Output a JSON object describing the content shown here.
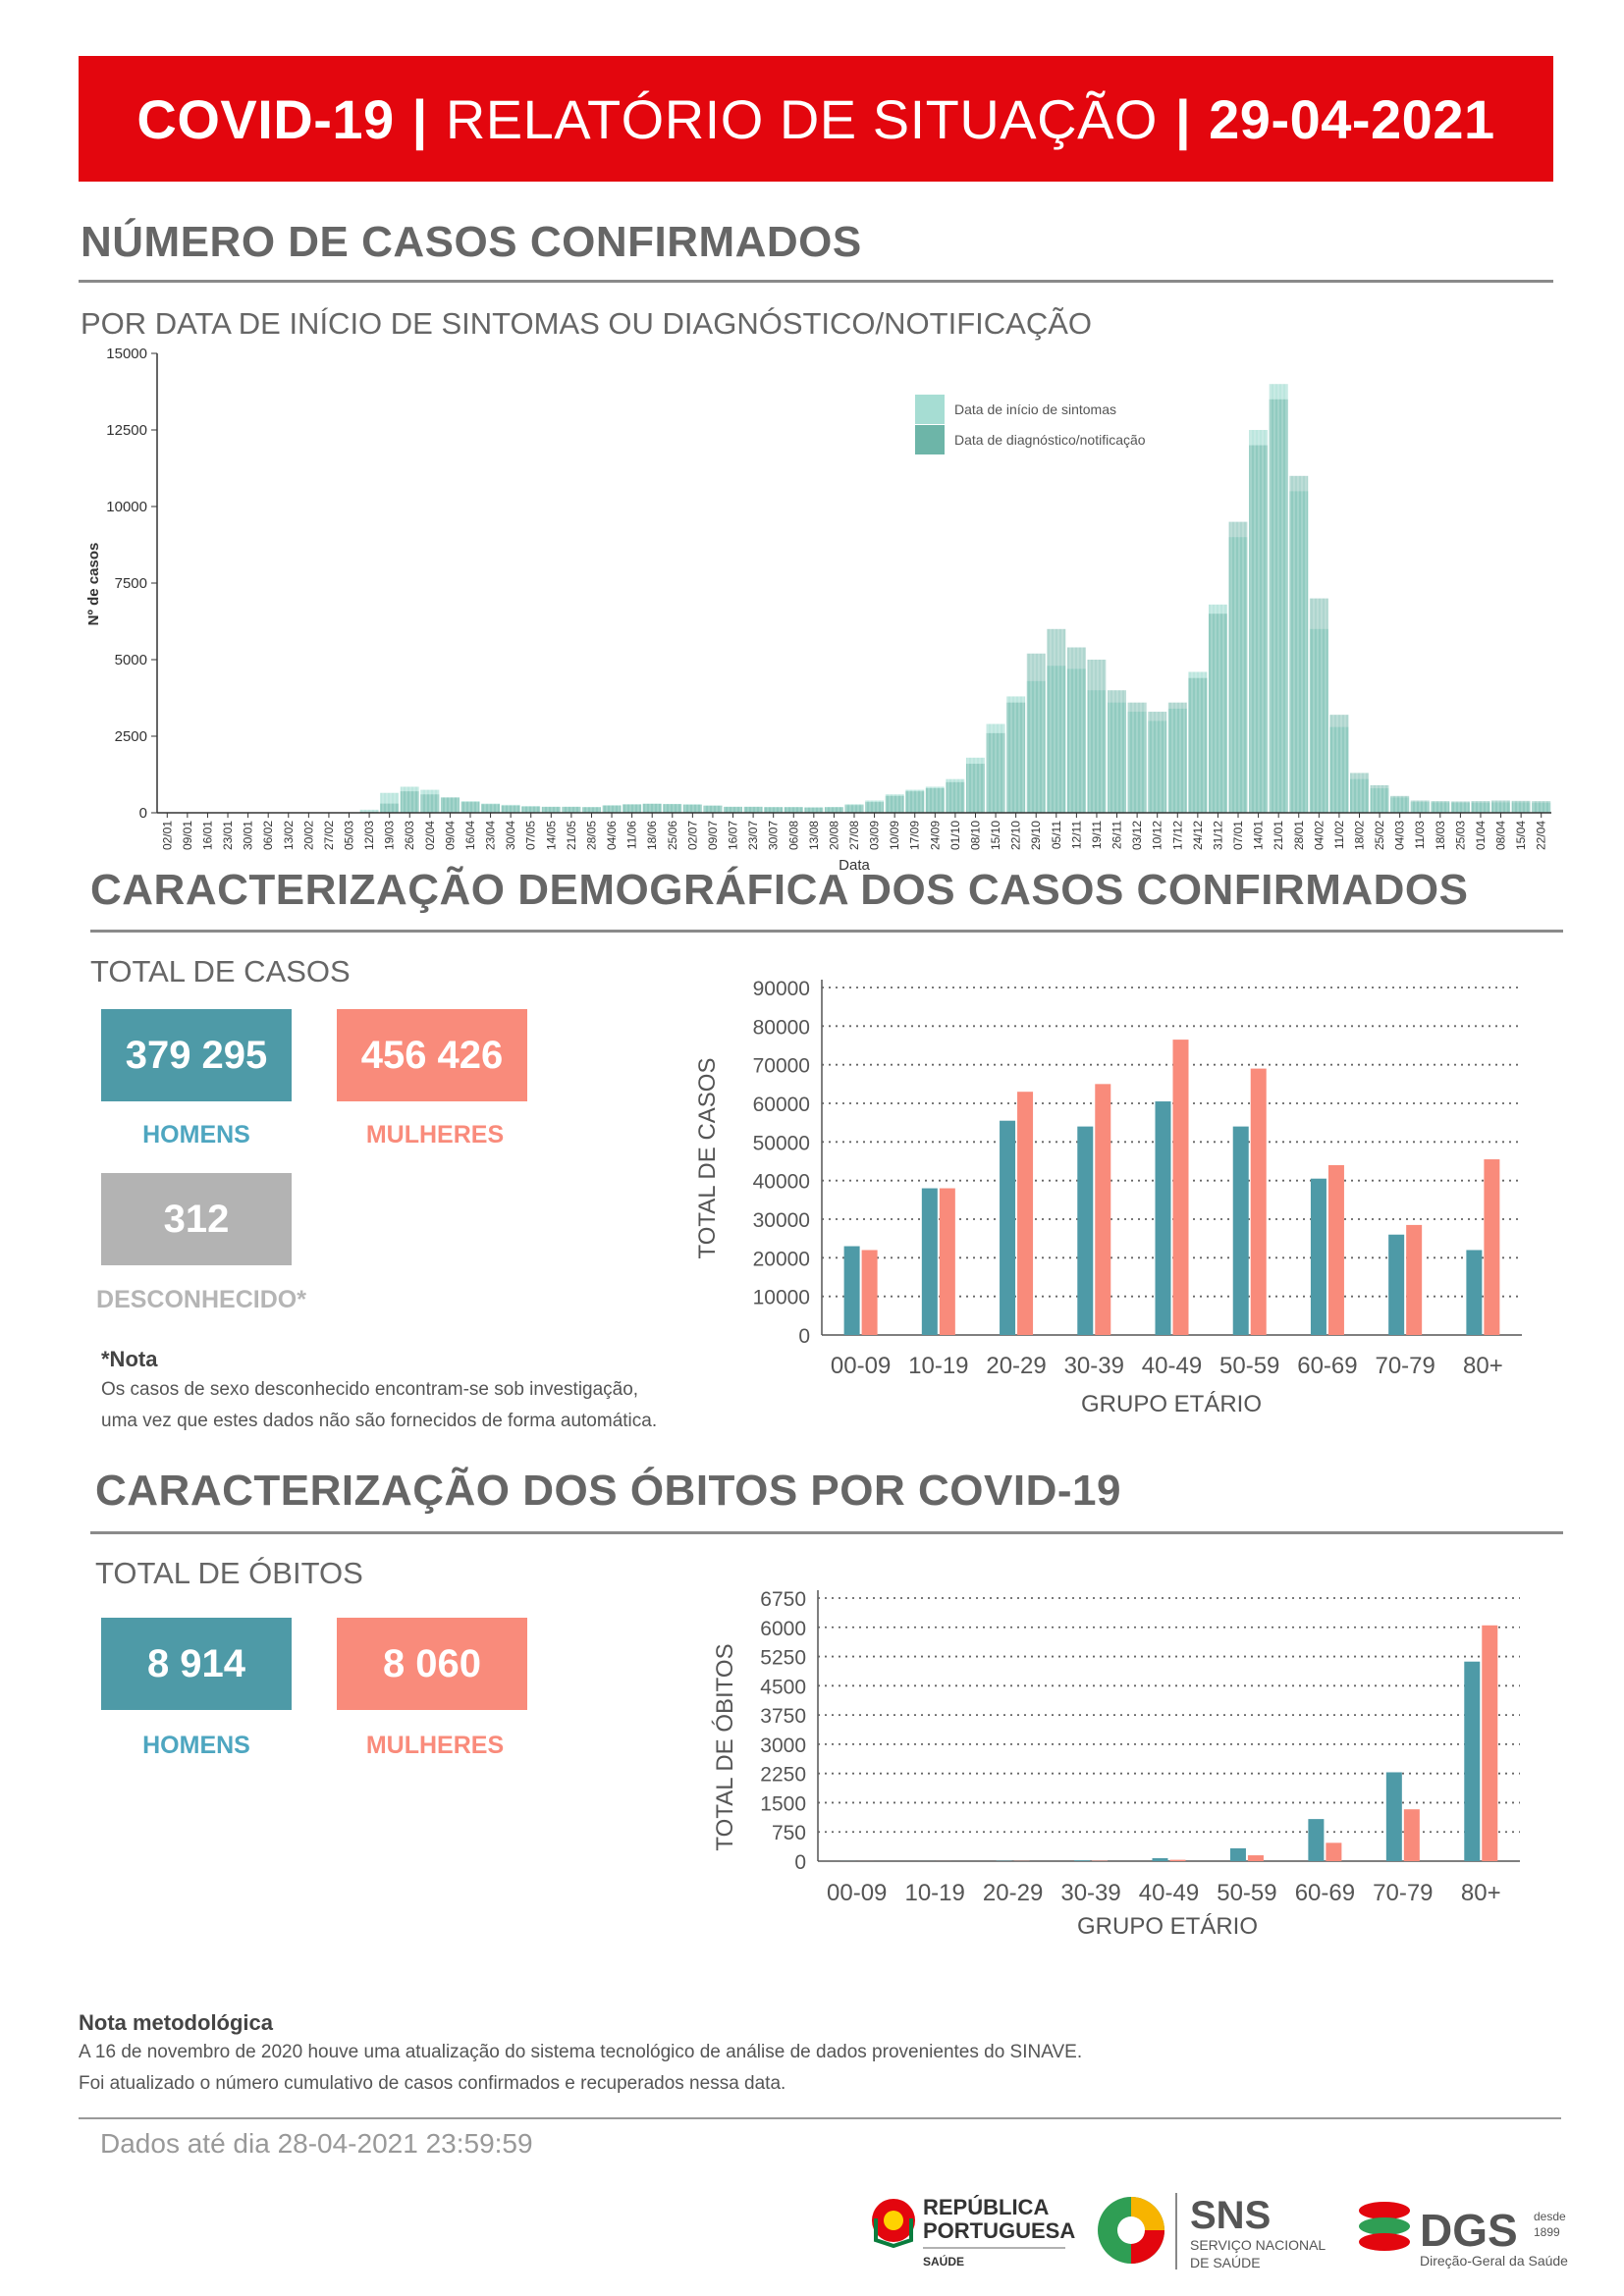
{
  "banner": {
    "left": "COVID-19",
    "sep": "|",
    "middle": "RELATÓRIO DE SITUAÇÃO",
    "date": "29-04-2021"
  },
  "sections": {
    "cases": {
      "title": "NÚMERO DE CASOS CONFIRMADOS",
      "subtitle": "POR DATA DE INÍCIO DE SINTOMAS OU DIAGNÓSTICO/NOTIFICAÇÃO"
    },
    "demo": {
      "title": "CARACTERIZAÇÃO DEMOGRÁFICA DOS CASOS CONFIRMADOS",
      "total_label": "TOTAL DE CASOS"
    },
    "deaths": {
      "title": "CARACTERIZAÇÃO DOS ÓBITOS POR COVID-19",
      "total_label": "TOTAL DE ÓBITOS"
    }
  },
  "totals_cases": {
    "men": "379 295",
    "men_label": "HOMENS",
    "women": "456 426",
    "women_label": "MULHERES",
    "unknown": "312",
    "unknown_label": "DESCONHECIDO*"
  },
  "note": {
    "title": "*Nota",
    "line1": "Os casos de sexo desconhecido encontram-se sob investigação,",
    "line2": "uma vez que estes dados não são fornecidos de forma automática."
  },
  "totals_deaths": {
    "men": "8 914",
    "men_label": "HOMENS",
    "women": "8 060",
    "women_label": "MULHERES"
  },
  "methodology": {
    "title": "Nota metodológica",
    "line1": "A 16 de novembro de 2020 houve uma atualização do sistema tecnológico de análise de dados provenientes do SINAVE.",
    "line2": "Foi atualizado o número cumulativo de casos confirmados e recuperados nessa data."
  },
  "footer": {
    "data_until": "Dados até dia 28-04-2021 23:59:59"
  },
  "logos": {
    "republica_line1": "REPÚBLICA",
    "republica_line2": "PORTUGUESA",
    "republica_line3": "SAÚDE",
    "sns": "SNS",
    "sns_line1": "SERVIÇO NACIONAL",
    "sns_line2": "DE SAÚDE",
    "dgs": "DGS",
    "dgs_since": "desde",
    "dgs_year": "1899",
    "dgs_name": "Direção-Geral da Saúde"
  },
  "colors": {
    "teal": "#4e9aa7",
    "salmon": "#f98b7b",
    "light_teal": "#a6ddd3",
    "dark_teal": "#6db5a8",
    "red": "#e3060e"
  },
  "chart_data": [
    {
      "type": "bar",
      "ylabel": "Nº de casos",
      "xlabel": "Data",
      "ylim": [
        0,
        15000
      ],
      "yticks": [
        0,
        2500,
        5000,
        7500,
        10000,
        12500,
        15000
      ],
      "x_ticks": [
        "02/01",
        "09/01",
        "16/01",
        "23/01",
        "30/01",
        "06/02",
        "13/02",
        "20/02",
        "27/02",
        "05/03",
        "12/03",
        "19/03",
        "26/03",
        "02/04",
        "09/04",
        "16/04",
        "23/04",
        "30/04",
        "07/05",
        "14/05",
        "21/05",
        "28/05",
        "04/06",
        "11/06",
        "18/06",
        "25/06",
        "02/07",
        "09/07",
        "16/07",
        "23/07",
        "30/07",
        "06/08",
        "13/08",
        "20/08",
        "27/08",
        "03/09",
        "10/09",
        "17/09",
        "24/09",
        "01/10",
        "08/10",
        "15/10",
        "22/10",
        "29/10",
        "05/11",
        "12/11",
        "19/11",
        "26/11",
        "03/12",
        "10/12",
        "17/12",
        "24/12",
        "31/12",
        "07/01",
        "14/01",
        "21/01",
        "28/01",
        "04/02",
        "11/02",
        "18/02",
        "25/02",
        "04/03",
        "11/03",
        "18/03",
        "25/03",
        "01/04",
        "08/04",
        "15/04",
        "22/04"
      ],
      "legend": "top-right",
      "series": [
        {
          "name": "Data de início de sintomas",
          "color": "#a6ddd3",
          "values": [
            0,
            0,
            0,
            0,
            0,
            0,
            0,
            0,
            0,
            0,
            100,
            650,
            850,
            750,
            500,
            380,
            300,
            260,
            220,
            200,
            200,
            190,
            250,
            280,
            300,
            290,
            280,
            240,
            200,
            200,
            190,
            190,
            180,
            190,
            280,
            400,
            600,
            750,
            850,
            1100,
            1800,
            2900,
            3800,
            4300,
            4800,
            4700,
            4000,
            3600,
            3300,
            3000,
            3400,
            4600,
            6800,
            9000,
            12500,
            14000,
            10500,
            6000,
            2800,
            1100,
            800,
            500,
            350,
            340,
            330,
            330,
            340,
            340,
            330
          ]
        },
        {
          "name": "Data de diagnóstico/notificação",
          "color": "#6db5a8",
          "values": [
            0,
            0,
            0,
            0,
            0,
            0,
            0,
            0,
            0,
            0,
            30,
            300,
            700,
            600,
            500,
            350,
            280,
            230,
            200,
            190,
            190,
            180,
            230,
            270,
            290,
            280,
            260,
            230,
            190,
            190,
            180,
            180,
            170,
            180,
            250,
            350,
            550,
            700,
            800,
            1000,
            1600,
            2600,
            3600,
            5200,
            6000,
            5400,
            5000,
            4000,
            3600,
            3300,
            3600,
            4400,
            6500,
            9500,
            12000,
            13500,
            11000,
            7000,
            3200,
            1300,
            900,
            550,
            400,
            380,
            370,
            380,
            400,
            390,
            380
          ]
        }
      ]
    },
    {
      "type": "bar",
      "categories": [
        "00-09",
        "10-19",
        "20-29",
        "30-39",
        "40-49",
        "50-59",
        "60-69",
        "70-79",
        "80+"
      ],
      "xlabel": "GRUPO ETÁRIO",
      "ylabel": "TOTAL DE CASOS",
      "ylim": [
        0,
        90000
      ],
      "yticks": [
        0,
        10000,
        20000,
        30000,
        40000,
        50000,
        60000,
        70000,
        80000,
        90000
      ],
      "grid": true,
      "series": [
        {
          "color": "#4e9aa7",
          "values": [
            23000,
            38000,
            55500,
            54000,
            60500,
            54000,
            40500,
            26000,
            22000
          ]
        },
        {
          "color": "#f98b7b",
          "values": [
            22000,
            38000,
            63000,
            65000,
            76500,
            69000,
            44000,
            28500,
            45500
          ]
        }
      ]
    },
    {
      "type": "bar",
      "categories": [
        "00-09",
        "10-19",
        "20-29",
        "30-39",
        "40-49",
        "50-59",
        "60-69",
        "70-79",
        "80+"
      ],
      "xlabel": "GRUPO ETÁRIO",
      "ylabel": "TOTAL DE ÓBITOS",
      "ylim": [
        0,
        6750
      ],
      "yticks": [
        0,
        750,
        1500,
        2250,
        3000,
        3750,
        4500,
        5250,
        6000,
        6750
      ],
      "grid": true,
      "series": [
        {
          "color": "#4e9aa7",
          "values": [
            2,
            1,
            8,
            20,
            75,
            330,
            1080,
            2280,
            5120
          ]
        },
        {
          "color": "#f98b7b",
          "values": [
            1,
            1,
            5,
            10,
            35,
            150,
            470,
            1330,
            6050
          ]
        }
      ]
    }
  ]
}
